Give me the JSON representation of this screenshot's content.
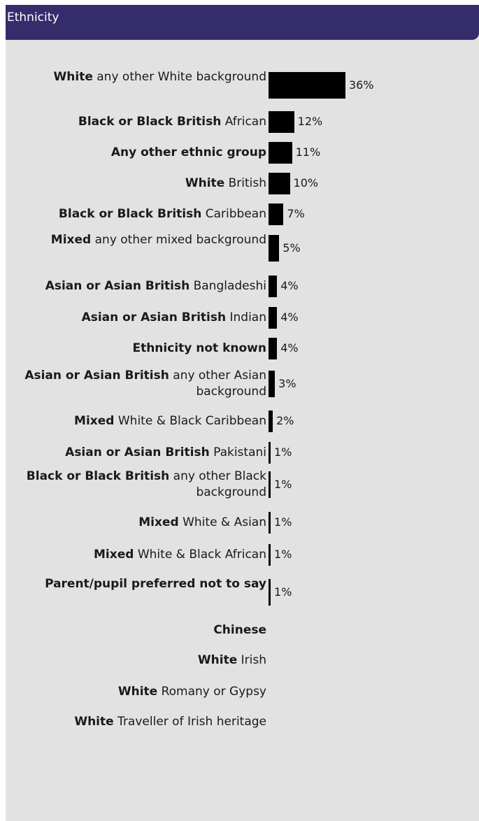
{
  "panel": {
    "title": "Ethnicity"
  },
  "colors": {
    "header": "#352d6b",
    "background": "#e2e2e2",
    "bar": "#000000"
  },
  "chart_data": {
    "type": "bar",
    "orientation": "horizontal",
    "title": "Ethnicity",
    "unit": "%",
    "categories": [
      {
        "bold": "White",
        "rest": " any other White background",
        "value": 36
      },
      {
        "bold": "Black or Black British",
        "rest": " African",
        "value": 12
      },
      {
        "bold": "Any other ethnic group",
        "rest": "",
        "value": 11
      },
      {
        "bold": "White",
        "rest": " British",
        "value": 10
      },
      {
        "bold": "Black or Black British",
        "rest": " Caribbean",
        "value": 7
      },
      {
        "bold": "Mixed",
        "rest": " any other mixed background",
        "value": 5
      },
      {
        "bold": "Asian or Asian British",
        "rest": " Bangladeshi",
        "value": 4
      },
      {
        "bold": "Asian or Asian British",
        "rest": " Indian",
        "value": 4
      },
      {
        "bold": "Ethnicity not known",
        "rest": "",
        "value": 4
      },
      {
        "bold": "Asian or Asian British",
        "rest": " any other Asian background",
        "value": 3
      },
      {
        "bold": "Mixed",
        "rest": " White & Black Caribbean",
        "value": 2
      },
      {
        "bold": "Asian or Asian British",
        "rest": " Pakistani",
        "value": 1
      },
      {
        "bold": "Black or Black British",
        "rest": " any other Black background",
        "value": 1
      },
      {
        "bold": "Mixed",
        "rest": " White & Asian",
        "value": 1
      },
      {
        "bold": "Mixed",
        "rest": " White & Black African",
        "value": 1
      },
      {
        "bold": "Parent/pupil preferred not to say",
        "rest": "",
        "value": 1
      },
      {
        "bold": "Chinese",
        "rest": "",
        "value": null
      },
      {
        "bold": "White",
        "rest": " Irish",
        "value": null
      },
      {
        "bold": "White",
        "rest": " Romany or Gypsy",
        "value": null
      },
      {
        "bold": "White",
        "rest": " Traveller of Irish heritage",
        "value": null
      }
    ],
    "value_labels": [
      "36%",
      "12%",
      "11%",
      "10%",
      "7%",
      "5%",
      "4%",
      "4%",
      "4%",
      "3%",
      "2%",
      "1%",
      "1%",
      "1%",
      "1%",
      "1%",
      "",
      "",
      "",
      ""
    ],
    "xlim": [
      0,
      36
    ]
  }
}
